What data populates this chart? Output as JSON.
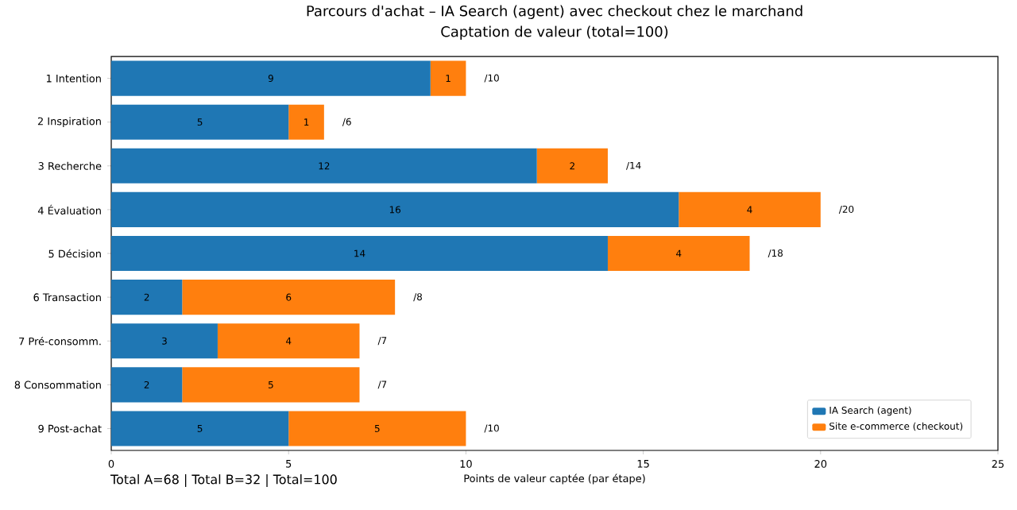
{
  "chart_data": {
    "type": "bar",
    "orientation": "horizontal",
    "stacked": true,
    "title": "Parcours d'achat – IA Search (agent) avec checkout chez le marchand",
    "subtitle": "Captation de valeur (total=100)",
    "xlabel": "Points de valeur captée (par étape)",
    "categories": [
      "1 Intention",
      "2 Inspiration",
      "3 Recherche",
      "4 Évaluation",
      "5 Décision",
      "6 Transaction",
      "7 Pré-consomm.",
      "8 Consommation",
      "9 Post-achat"
    ],
    "series": [
      {
        "name": "IA Search (agent)",
        "color": "#1f77b4",
        "values": [
          9,
          5,
          12,
          16,
          14,
          2,
          3,
          2,
          5
        ]
      },
      {
        "name": "Site e-commerce (checkout)",
        "color": "#ff7f0e",
        "values": [
          1,
          1,
          2,
          4,
          4,
          6,
          4,
          5,
          5
        ]
      }
    ],
    "totals": [
      "/10",
      "/6",
      "/14",
      "/20",
      "/18",
      "/8",
      "/7",
      "/7",
      "/10"
    ],
    "data_labels": true,
    "xlim": [
      0,
      25
    ],
    "xticks": [
      0,
      5,
      10,
      15,
      20,
      25
    ],
    "grid": false,
    "legend": "bottom right",
    "annotations": [
      "Total A=68 | Total B=32 | Total=100"
    ]
  }
}
